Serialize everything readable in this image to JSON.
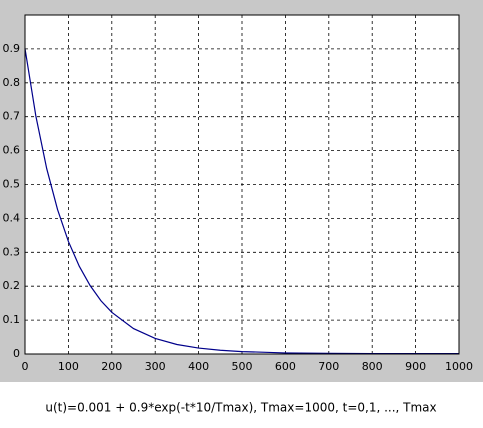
{
  "chart_data": {
    "type": "line",
    "caption": "u(t)=0.001 + 0.9*exp(-t*10/Tmax),  Tmax=1000, t=0,1, ..., Tmax",
    "x": [
      0,
      25,
      50,
      75,
      100,
      125,
      150,
      175,
      200,
      250,
      300,
      350,
      400,
      450,
      500,
      600,
      700,
      800,
      900,
      1000
    ],
    "series": [
      {
        "color": "#00008b",
        "values": [
          0.901,
          0.702,
          0.547,
          0.426,
          0.332,
          0.259,
          0.202,
          0.157,
          0.123,
          0.075,
          0.046,
          0.028,
          0.0175,
          0.011,
          0.0071,
          0.0032,
          0.0018,
          0.0013,
          0.0011,
          0.001
        ]
      }
    ],
    "xlim": [
      0,
      1000
    ],
    "xticks": [
      0,
      100,
      200,
      300,
      400,
      500,
      600,
      700,
      800,
      900,
      1000
    ],
    "ylim": [
      0,
      1
    ],
    "yticks": [
      0,
      0.1,
      0.2,
      0.3,
      0.4,
      0.5,
      0.6,
      0.7,
      0.8,
      0.9
    ],
    "grid": true
  }
}
